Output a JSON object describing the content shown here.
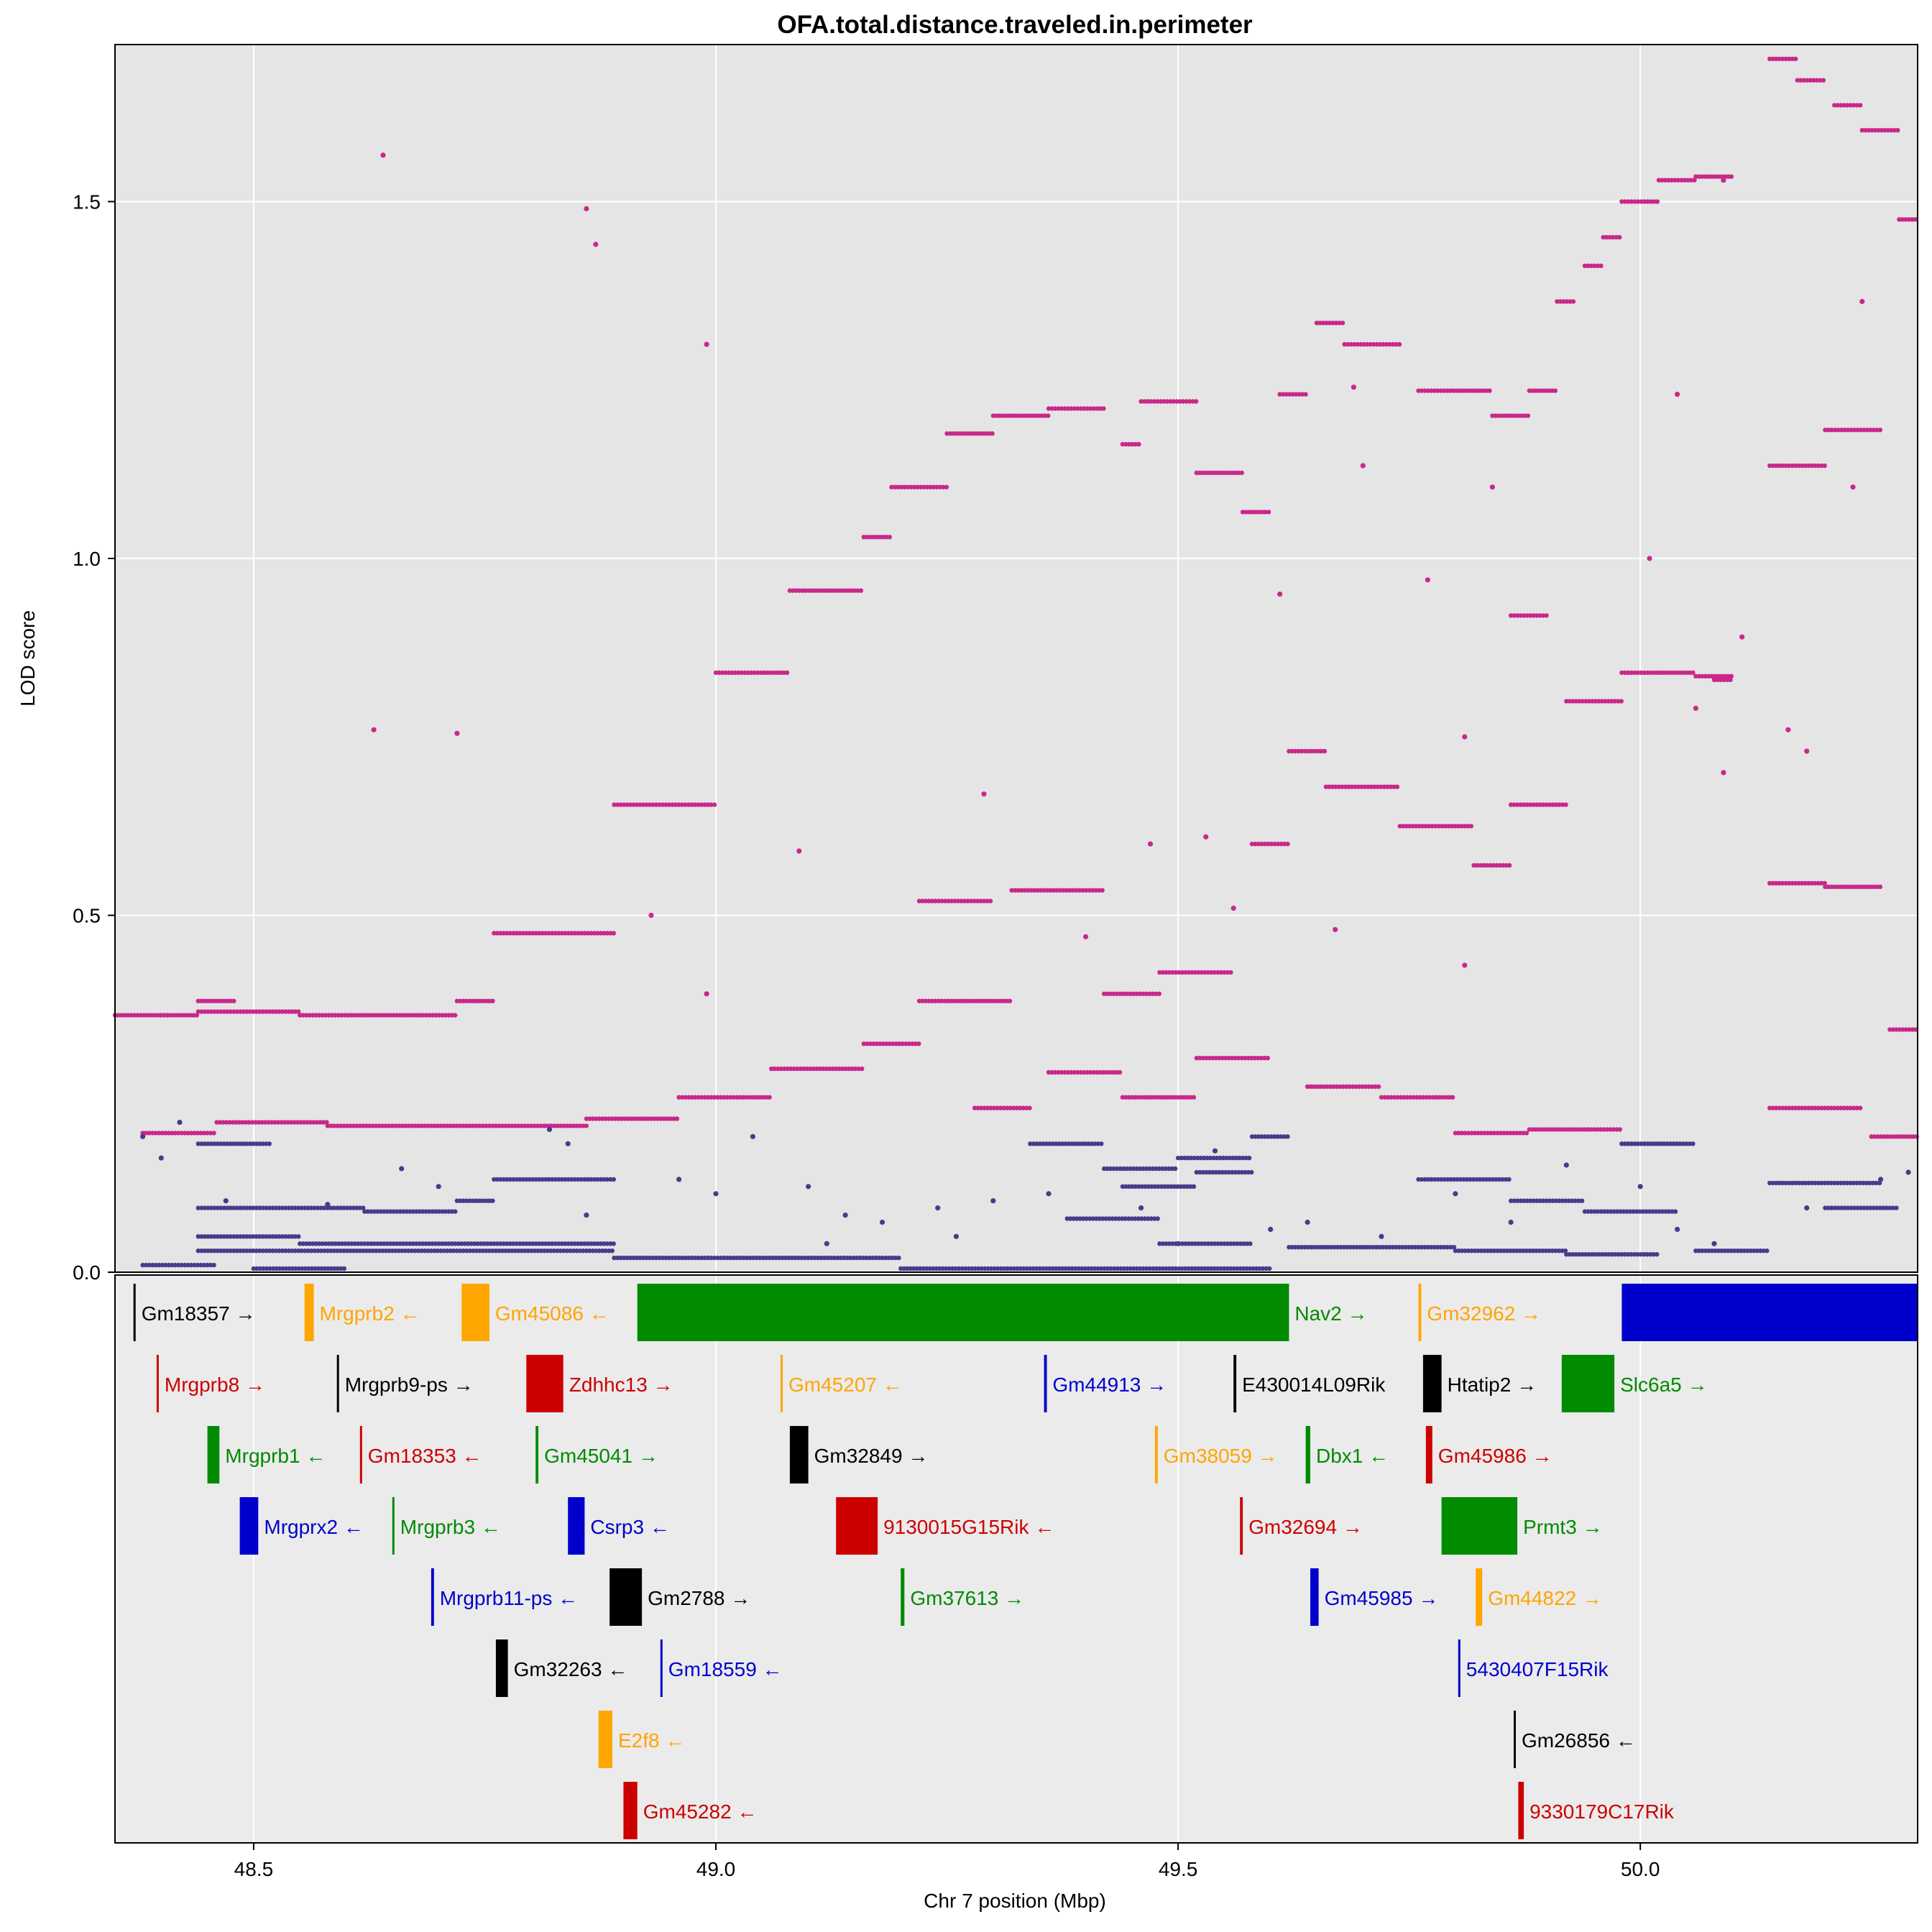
{
  "chart_data": {
    "type": "scatter",
    "title": "OFA.total.distance.traveled.in.perimeter",
    "xlabel": "Chr 7 position (Mbp)",
    "ylabel": "LOD score",
    "xlim": [
      48.35,
      50.3
    ],
    "ylim": [
      0.0,
      1.72
    ],
    "x_ticks": [
      48.5,
      49.0,
      49.5,
      50.0
    ],
    "x_tick_labels": [
      "48.5",
      "49.0",
      "49.5",
      "50.0"
    ],
    "y_ticks": [
      0.0,
      0.5,
      1.0,
      1.5
    ],
    "y_tick_labels": [
      "0.0",
      "0.5",
      "1.0",
      "1.5"
    ],
    "grid": true,
    "legend": "none",
    "colors": {
      "series_a": "#c9288a",
      "series_b": "#463c8c",
      "panel_bg": "#e5e5e5",
      "gene_panel_bg": "#ebebeb"
    },
    "series": [
      {
        "color": "#c9288a",
        "segments": [
          [
            48.35,
            48.4,
            0.36
          ],
          [
            48.4,
            48.44,
            0.36
          ],
          [
            48.44,
            48.48,
            0.38
          ],
          [
            48.44,
            48.55,
            0.365
          ],
          [
            48.55,
            48.72,
            0.36
          ],
          [
            48.72,
            48.76,
            0.38
          ],
          [
            48.76,
            48.89,
            0.475
          ],
          [
            48.89,
            49.0,
            0.655
          ],
          [
            49.0,
            49.08,
            0.84
          ],
          [
            49.08,
            49.16,
            0.955
          ],
          [
            49.16,
            49.19,
            1.03
          ],
          [
            49.19,
            49.25,
            1.1
          ],
          [
            49.25,
            49.3,
            1.175
          ],
          [
            49.3,
            49.36,
            1.2
          ],
          [
            49.36,
            49.42,
            1.21
          ],
          [
            49.44,
            49.46,
            1.16
          ],
          [
            49.46,
            49.52,
            1.22
          ],
          [
            49.52,
            49.57,
            1.12
          ],
          [
            49.57,
            49.6,
            1.065
          ],
          [
            49.61,
            49.64,
            1.23
          ],
          [
            49.65,
            49.68,
            1.33
          ],
          [
            49.68,
            49.74,
            1.3
          ],
          [
            49.76,
            49.84,
            1.235
          ],
          [
            49.84,
            49.88,
            1.2
          ],
          [
            49.88,
            49.91,
            1.235
          ],
          [
            49.91,
            49.93,
            1.36
          ],
          [
            49.94,
            49.96,
            1.41
          ],
          [
            49.96,
            49.98,
            1.45
          ],
          [
            49.98,
            50.02,
            1.5
          ],
          [
            50.02,
            50.06,
            1.53
          ],
          [
            50.06,
            50.1,
            1.535
          ],
          [
            50.14,
            50.17,
            1.7
          ],
          [
            50.17,
            50.2,
            1.67
          ],
          [
            50.21,
            50.24,
            1.635
          ],
          [
            50.24,
            50.28,
            1.6
          ],
          [
            50.28,
            50.3,
            1.475
          ],
          [
            48.38,
            48.46,
            0.195
          ],
          [
            48.46,
            48.58,
            0.21
          ],
          [
            48.58,
            48.86,
            0.205
          ],
          [
            48.86,
            48.96,
            0.215
          ],
          [
            48.96,
            49.06,
            0.245
          ],
          [
            49.06,
            49.16,
            0.285
          ],
          [
            49.16,
            49.22,
            0.32
          ],
          [
            49.22,
            49.32,
            0.38
          ],
          [
            49.32,
            49.42,
            0.535
          ],
          [
            49.42,
            49.48,
            0.39
          ],
          [
            49.48,
            49.56,
            0.42
          ],
          [
            49.58,
            49.62,
            0.6
          ],
          [
            49.62,
            49.66,
            0.73
          ],
          [
            49.66,
            49.74,
            0.68
          ],
          [
            49.74,
            49.82,
            0.625
          ],
          [
            49.82,
            49.86,
            0.57
          ],
          [
            49.86,
            49.92,
            0.655
          ],
          [
            49.92,
            49.98,
            0.8
          ],
          [
            49.98,
            50.06,
            0.84
          ],
          [
            50.06,
            50.1,
            0.835
          ],
          [
            50.14,
            50.2,
            0.545
          ],
          [
            50.2,
            50.26,
            0.54
          ],
          [
            50.27,
            50.3,
            0.34
          ],
          [
            49.22,
            49.3,
            0.52
          ],
          [
            49.28,
            49.34,
            0.23
          ],
          [
            49.36,
            49.44,
            0.28
          ],
          [
            49.44,
            49.52,
            0.245
          ],
          [
            49.52,
            49.6,
            0.3
          ],
          [
            49.64,
            49.72,
            0.26
          ],
          [
            49.72,
            49.8,
            0.245
          ],
          [
            49.8,
            49.88,
            0.195
          ],
          [
            49.88,
            49.98,
            0.2
          ],
          [
            49.98,
            50.04,
            0.18
          ],
          [
            50.14,
            50.24,
            0.23
          ],
          [
            50.25,
            50.3,
            0.19
          ],
          [
            50.14,
            50.2,
            1.13
          ],
          [
            50.2,
            50.26,
            1.18
          ],
          [
            49.86,
            49.9,
            0.92
          ],
          [
            50.08,
            50.1,
            0.83
          ]
        ],
        "scatter": [
          [
            48.64,
            1.565
          ],
          [
            48.86,
            1.49
          ],
          [
            48.87,
            1.44
          ],
          [
            48.99,
            1.3
          ],
          [
            48.63,
            0.76
          ],
          [
            48.72,
            0.755
          ],
          [
            48.93,
            0.5
          ],
          [
            49.09,
            0.59
          ],
          [
            49.29,
            0.67
          ],
          [
            49.47,
            0.6
          ],
          [
            49.53,
            0.61
          ],
          [
            49.69,
            1.24
          ],
          [
            49.7,
            1.13
          ],
          [
            49.77,
            0.97
          ],
          [
            49.81,
            0.75
          ],
          [
            49.81,
            0.43
          ],
          [
            49.84,
            1.1
          ],
          [
            50.01,
            1.0
          ],
          [
            50.04,
            1.23
          ],
          [
            50.06,
            0.79
          ],
          [
            50.09,
            0.7
          ],
          [
            50.09,
            1.53
          ],
          [
            50.16,
            0.76
          ],
          [
            50.18,
            0.73
          ],
          [
            50.24,
            1.36
          ],
          [
            49.61,
            0.95
          ],
          [
            48.99,
            0.39
          ],
          [
            49.4,
            0.47
          ],
          [
            49.56,
            0.51
          ],
          [
            49.67,
            0.48
          ],
          [
            50.11,
            0.89
          ],
          [
            50.23,
            1.1
          ]
        ]
      },
      {
        "color": "#463c8c",
        "segments": [
          [
            48.44,
            48.52,
            0.18
          ],
          [
            48.44,
            48.62,
            0.09
          ],
          [
            48.62,
            48.72,
            0.085
          ],
          [
            48.72,
            48.76,
            0.1
          ],
          [
            48.76,
            48.89,
            0.13
          ],
          [
            48.44,
            48.55,
            0.05
          ],
          [
            48.55,
            48.89,
            0.04
          ],
          [
            48.44,
            48.89,
            0.03
          ],
          [
            48.89,
            49.2,
            0.02
          ],
          [
            49.2,
            49.6,
            0.005
          ],
          [
            49.34,
            49.42,
            0.18
          ],
          [
            49.42,
            49.5,
            0.145
          ],
          [
            49.5,
            49.58,
            0.16
          ],
          [
            49.58,
            49.62,
            0.19
          ],
          [
            49.44,
            49.52,
            0.12
          ],
          [
            49.52,
            49.58,
            0.14
          ],
          [
            49.38,
            49.48,
            0.075
          ],
          [
            49.48,
            49.58,
            0.04
          ],
          [
            49.76,
            49.86,
            0.13
          ],
          [
            49.86,
            49.94,
            0.1
          ],
          [
            49.94,
            50.04,
            0.085
          ],
          [
            49.98,
            50.06,
            0.18
          ],
          [
            50.14,
            50.26,
            0.125
          ],
          [
            50.2,
            50.28,
            0.09
          ],
          [
            48.38,
            48.46,
            0.01
          ],
          [
            48.5,
            48.6,
            0.005
          ],
          [
            49.62,
            49.8,
            0.035
          ],
          [
            49.8,
            49.92,
            0.03
          ],
          [
            49.92,
            50.02,
            0.025
          ],
          [
            50.06,
            50.14,
            0.03
          ]
        ],
        "scatter": [
          [
            48.38,
            0.19
          ],
          [
            48.4,
            0.16
          ],
          [
            48.42,
            0.21
          ],
          [
            48.47,
            0.1
          ],
          [
            48.58,
            0.095
          ],
          [
            48.66,
            0.145
          ],
          [
            48.7,
            0.12
          ],
          [
            48.82,
            0.2
          ],
          [
            48.84,
            0.18
          ],
          [
            48.86,
            0.08
          ],
          [
            48.96,
            0.13
          ],
          [
            49.0,
            0.11
          ],
          [
            49.04,
            0.19
          ],
          [
            49.1,
            0.12
          ],
          [
            49.14,
            0.08
          ],
          [
            49.18,
            0.07
          ],
          [
            49.24,
            0.09
          ],
          [
            49.3,
            0.1
          ],
          [
            49.36,
            0.11
          ],
          [
            49.46,
            0.09
          ],
          [
            49.54,
            0.17
          ],
          [
            49.6,
            0.06
          ],
          [
            49.64,
            0.07
          ],
          [
            49.72,
            0.05
          ],
          [
            49.8,
            0.11
          ],
          [
            49.86,
            0.07
          ],
          [
            49.92,
            0.15
          ],
          [
            50.0,
            0.12
          ],
          [
            50.04,
            0.06
          ],
          [
            50.08,
            0.04
          ],
          [
            50.18,
            0.09
          ],
          [
            50.26,
            0.13
          ],
          [
            50.29,
            0.14
          ],
          [
            49.12,
            0.04
          ],
          [
            49.26,
            0.05
          ],
          [
            49.5,
            0.04
          ]
        ]
      }
    ],
    "genes": [
      {
        "label": "Gm18357 →",
        "x0": 48.37,
        "x1": 48.372,
        "row": 0,
        "color": "#000000"
      },
      {
        "label": "Mrgprb2 ←",
        "x0": 48.555,
        "x1": 48.565,
        "row": 0,
        "color": "#ffa500"
      },
      {
        "label": "Gm45086 ←",
        "x0": 48.725,
        "x1": 48.755,
        "row": 0,
        "color": "#ffa500"
      },
      {
        "label": "Nav2 →",
        "x0": 48.915,
        "x1": 49.62,
        "row": 0,
        "color": "#008b00"
      },
      {
        "label": "Gm32962 →",
        "x0": 49.76,
        "x1": 49.763,
        "row": 0,
        "color": "#ffa500"
      },
      {
        "label": "",
        "x0": 49.98,
        "x1": 50.3,
        "row": 0,
        "color": "#0000cd"
      },
      {
        "label": "Mrgprb8 →",
        "x0": 48.395,
        "x1": 48.397,
        "row": 1,
        "color": "#cd0000"
      },
      {
        "label": "Mrgprb9-ps →",
        "x0": 48.59,
        "x1": 48.592,
        "row": 1,
        "color": "#000000"
      },
      {
        "label": "Zdhhc13 →",
        "x0": 48.795,
        "x1": 48.835,
        "row": 1,
        "color": "#cd0000"
      },
      {
        "label": "Gm45207 ←",
        "x0": 49.07,
        "x1": 49.072,
        "row": 1,
        "color": "#ffa500"
      },
      {
        "label": "Gm44913 →",
        "x0": 49.355,
        "x1": 49.358,
        "row": 1,
        "color": "#0000cd"
      },
      {
        "label": "E430014L09Rik",
        "x0": 49.56,
        "x1": 49.563,
        "row": 1,
        "color": "#000000"
      },
      {
        "label": "Htatip2 →",
        "x0": 49.765,
        "x1": 49.785,
        "row": 1,
        "color": "#000000"
      },
      {
        "label": "Slc6a5 →",
        "x0": 49.915,
        "x1": 49.972,
        "row": 1,
        "color": "#008b00"
      },
      {
        "label": "Mrgprb1 ←",
        "x0": 48.45,
        "x1": 48.463,
        "row": 2,
        "color": "#008b00"
      },
      {
        "label": "Gm18353 ←",
        "x0": 48.615,
        "x1": 48.617,
        "row": 2,
        "color": "#cd0000"
      },
      {
        "label": "Gm45041 →",
        "x0": 48.805,
        "x1": 48.808,
        "row": 2,
        "color": "#008b00"
      },
      {
        "label": "Gm32849 →",
        "x0": 49.08,
        "x1": 49.1,
        "row": 2,
        "color": "#000000"
      },
      {
        "label": "Gm38059 →",
        "x0": 49.475,
        "x1": 49.478,
        "row": 2,
        "color": "#ffa500"
      },
      {
        "label": "Dbx1 ←",
        "x0": 49.638,
        "x1": 49.643,
        "row": 2,
        "color": "#008b00"
      },
      {
        "label": "Gm45986 →",
        "x0": 49.768,
        "x1": 49.775,
        "row": 2,
        "color": "#cd0000"
      },
      {
        "label": "Mrgprx2 ←",
        "x0": 48.485,
        "x1": 48.505,
        "row": 3,
        "color": "#0000cd"
      },
      {
        "label": "Mrgprb3 ←",
        "x0": 48.65,
        "x1": 48.652,
        "row": 3,
        "color": "#008b00"
      },
      {
        "label": "Csrp3 ←",
        "x0": 48.84,
        "x1": 48.858,
        "row": 3,
        "color": "#0000cd"
      },
      {
        "label": "9130015G15Rik ←",
        "x0": 49.13,
        "x1": 49.175,
        "row": 3,
        "color": "#cd0000"
      },
      {
        "label": "Gm32694 →",
        "x0": 49.567,
        "x1": 49.57,
        "row": 3,
        "color": "#cd0000"
      },
      {
        "label": "Prmt3 →",
        "x0": 49.785,
        "x1": 49.867,
        "row": 3,
        "color": "#008b00"
      },
      {
        "label": "Mrgprb11-ps ←",
        "x0": 48.692,
        "x1": 48.695,
        "row": 4,
        "color": "#0000cd"
      },
      {
        "label": "Gm2788 →",
        "x0": 48.885,
        "x1": 48.92,
        "row": 4,
        "color": "#000000"
      },
      {
        "label": "Gm37613 →",
        "x0": 49.2,
        "x1": 49.204,
        "row": 4,
        "color": "#008b00"
      },
      {
        "label": "Gm45985 →",
        "x0": 49.643,
        "x1": 49.652,
        "row": 4,
        "color": "#0000cd"
      },
      {
        "label": "Gm44822 →",
        "x0": 49.822,
        "x1": 49.829,
        "row": 4,
        "color": "#ffa500"
      },
      {
        "label": "Gm32263 ←",
        "x0": 48.762,
        "x1": 48.775,
        "row": 5,
        "color": "#000000"
      },
      {
        "label": "Gm18559 ←",
        "x0": 48.94,
        "x1": 48.942,
        "row": 5,
        "color": "#0000cd"
      },
      {
        "label": "5430407F15Rik",
        "x0": 49.803,
        "x1": 49.805,
        "row": 5,
        "color": "#0000cd"
      },
      {
        "label": "E2f8 ←",
        "x0": 48.873,
        "x1": 48.888,
        "row": 6,
        "color": "#ffa500"
      },
      {
        "label": "Gm26856 ←",
        "x0": 49.863,
        "x1": 49.865,
        "row": 6,
        "color": "#000000"
      },
      {
        "label": "Gm45282 ←",
        "x0": 48.9,
        "x1": 48.915,
        "row": 7,
        "color": "#cd0000"
      },
      {
        "label": "9330179C17Rik",
        "x0": 49.868,
        "x1": 49.874,
        "row": 7,
        "color": "#cd0000"
      }
    ]
  }
}
